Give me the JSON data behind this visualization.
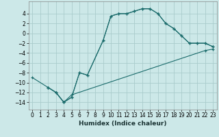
{
  "xlabel": "Humidex (Indice chaleur)",
  "background_color": "#cce8e8",
  "grid_color": "#aacccc",
  "line_color": "#1a6b6b",
  "xlim": [
    -0.5,
    23.5
  ],
  "ylim": [
    -15.5,
    6.5
  ],
  "xticks": [
    0,
    1,
    2,
    3,
    4,
    5,
    6,
    7,
    8,
    9,
    10,
    11,
    12,
    13,
    14,
    15,
    16,
    17,
    18,
    19,
    20,
    21,
    22,
    23
  ],
  "yticks": [
    -14,
    -12,
    -10,
    -8,
    -6,
    -4,
    -2,
    0,
    2,
    4
  ],
  "series1_x": [
    0,
    2,
    3,
    4,
    5,
    6,
    7,
    9,
    10,
    11,
    12,
    13,
    14,
    15,
    16,
    17,
    18,
    19,
    20,
    21,
    22,
    23
  ],
  "series1_y": [
    -9,
    -11,
    -12,
    -14,
    -13,
    -8,
    -8.5,
    -1.5,
    3.5,
    4,
    4,
    4.5,
    5,
    5,
    4,
    2,
    1,
    -0.5,
    -2,
    -2,
    -2,
    -2.7
  ],
  "series2_x": [
    2,
    3,
    4,
    5,
    6,
    7,
    9,
    10,
    11,
    12,
    13,
    14,
    15,
    16,
    17,
    18,
    19,
    20,
    21,
    22,
    23
  ],
  "series2_y": [
    -11,
    -12,
    -14,
    -13,
    -8,
    -8.5,
    -1.5,
    3.5,
    4,
    4,
    4.5,
    5,
    5,
    4,
    2,
    1,
    -0.5,
    -2,
    -2,
    -2,
    -2.7
  ],
  "series3_x": [
    2,
    3,
    4,
    5,
    22,
    23
  ],
  "series3_y": [
    -11,
    -12,
    -14,
    -12.5,
    -3.5,
    -3.2
  ],
  "tick_fontsize": 5.5,
  "xlabel_fontsize": 6.5
}
